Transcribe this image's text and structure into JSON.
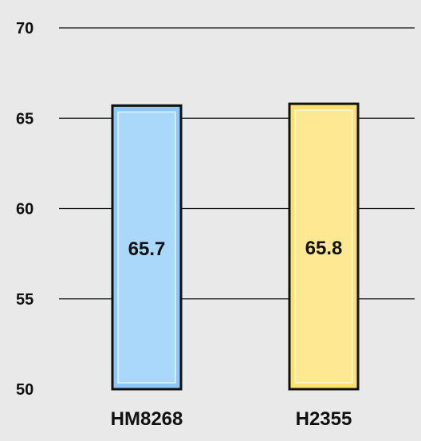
{
  "chart_data": {
    "type": "bar",
    "categories": [
      "HM8268",
      "H2355"
    ],
    "series": [
      {
        "values": [
          65.7,
          65.8
        ]
      }
    ],
    "data_labels": [
      "65.7",
      "65.8"
    ],
    "title": "",
    "xlabel": "",
    "ylabel": "",
    "ylim": [
      50,
      70
    ],
    "yticks": [
      "50",
      "55",
      "60",
      "65",
      "70"
    ],
    "grid": true,
    "bar_colors": [
      "#8cc8f8",
      "#fde06e"
    ],
    "bar_inner_colors": [
      "#a9d8fb",
      "#fee892"
    ],
    "border_color": "#111111",
    "background": "#e9e9e9"
  }
}
